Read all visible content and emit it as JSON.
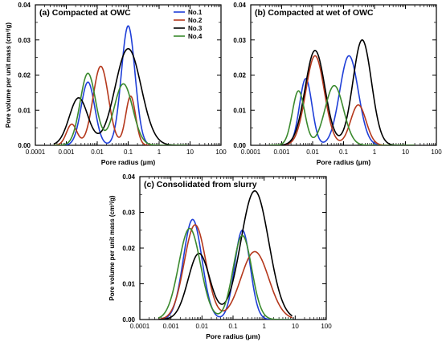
{
  "chart_data": [
    {
      "type": "line",
      "title": "(a) Compacted at OWC",
      "xlabel": "Pore radius (μm)",
      "ylabel": "Pore volume per unit mass (cm³/g)",
      "x_scale": "log",
      "xlim": [
        0.0001,
        100
      ],
      "ylim": [
        0,
        0.04
      ],
      "x_tick_labels": [
        "0.0001",
        "0.001",
        "0.01",
        "0.1",
        "1",
        "10",
        "100"
      ],
      "y_tick_labels": [
        "0.00",
        "0.01",
        "0.02",
        "0.03",
        "0.04"
      ],
      "legend": [
        "No.1",
        "No.2",
        "No.3",
        "No.4"
      ],
      "legend_position": "top-left",
      "series": [
        {
          "name": "No.1",
          "color": "#1f3fd8",
          "peaks": [
            {
              "x": 0.005,
              "y": 0.018,
              "w": 0.22
            },
            {
              "x": 0.1,
              "y": 0.034,
              "w": 0.22
            }
          ]
        },
        {
          "name": "No.2",
          "color": "#b5381c",
          "peaks": [
            {
              "x": 0.0015,
              "y": 0.006,
              "w": 0.17
            },
            {
              "x": 0.013,
              "y": 0.0225,
              "w": 0.25
            },
            {
              "x": 0.12,
              "y": 0.014,
              "w": 0.16
            }
          ]
        },
        {
          "name": "No.3",
          "color": "#000000",
          "peaks": [
            {
              "x": 0.0025,
              "y": 0.0135,
              "w": 0.3
            },
            {
              "x": 0.1,
              "y": 0.0275,
              "w": 0.42
            }
          ]
        },
        {
          "name": "No.4",
          "color": "#3b8a2e",
          "peaks": [
            {
              "x": 0.005,
              "y": 0.0205,
              "w": 0.25
            },
            {
              "x": 0.07,
              "y": 0.0175,
              "w": 0.3
            }
          ]
        }
      ]
    },
    {
      "type": "line",
      "title": "(b) Compacted at wet of OWC",
      "xlabel": "Pore radius (μm)",
      "ylabel": "",
      "x_scale": "log",
      "xlim": [
        0.0001,
        100
      ],
      "ylim": [
        0,
        0.04
      ],
      "x_tick_labels": [
        "0.0001",
        "0.001",
        "0.01",
        "0.1",
        "1",
        "10",
        "100"
      ],
      "y_tick_labels": [
        "0.00",
        "0.01",
        "0.02",
        "0.03",
        "0.04"
      ],
      "series": [
        {
          "name": "No.1",
          "color": "#1f3fd8",
          "peaks": [
            {
              "x": 0.006,
              "y": 0.019,
              "w": 0.2
            },
            {
              "x": 0.15,
              "y": 0.0255,
              "w": 0.3
            }
          ]
        },
        {
          "name": "No.2",
          "color": "#b5381c",
          "peaks": [
            {
              "x": 0.012,
              "y": 0.0255,
              "w": 0.3
            },
            {
              "x": 0.3,
              "y": 0.0115,
              "w": 0.25
            }
          ]
        },
        {
          "name": "No.3",
          "color": "#000000",
          "peaks": [
            {
              "x": 0.012,
              "y": 0.027,
              "w": 0.32
            },
            {
              "x": 0.4,
              "y": 0.03,
              "w": 0.3
            }
          ]
        },
        {
          "name": "No.4",
          "color": "#3b8a2e",
          "peaks": [
            {
              "x": 0.0035,
              "y": 0.0155,
              "w": 0.2
            },
            {
              "x": 0.05,
              "y": 0.017,
              "w": 0.3
            }
          ]
        }
      ]
    },
    {
      "type": "line",
      "title": "(c) Consolidated from slurry",
      "xlabel": "Pore radius (μm)",
      "ylabel": "Pore volume per unit mass (cm³/g)",
      "x_scale": "log",
      "xlim": [
        0.0001,
        100
      ],
      "ylim": [
        0,
        0.04
      ],
      "x_tick_labels": [
        "0.0001",
        "0.001",
        "0.01",
        "0.1",
        "1",
        "10",
        "100"
      ],
      "y_tick_labels": [
        "0.00",
        "0.01",
        "0.02",
        "0.03",
        "0.04"
      ],
      "series": [
        {
          "name": "No.1",
          "color": "#1f3fd8",
          "peaks": [
            {
              "x": 0.005,
              "y": 0.028,
              "w": 0.3
            },
            {
              "x": 0.2,
              "y": 0.025,
              "w": 0.25
            }
          ]
        },
        {
          "name": "No.2",
          "color": "#b5381c",
          "peaks": [
            {
              "x": 0.006,
              "y": 0.0265,
              "w": 0.35
            },
            {
              "x": 0.5,
              "y": 0.019,
              "w": 0.45
            }
          ]
        },
        {
          "name": "No.3",
          "color": "#000000",
          "peaks": [
            {
              "x": 0.008,
              "y": 0.0185,
              "w": 0.35
            },
            {
              "x": 0.5,
              "y": 0.036,
              "w": 0.45
            }
          ]
        },
        {
          "name": "No.4",
          "color": "#3b8a2e",
          "peaks": [
            {
              "x": 0.004,
              "y": 0.0255,
              "w": 0.35
            },
            {
              "x": 0.2,
              "y": 0.0235,
              "w": 0.3
            }
          ]
        }
      ]
    }
  ]
}
